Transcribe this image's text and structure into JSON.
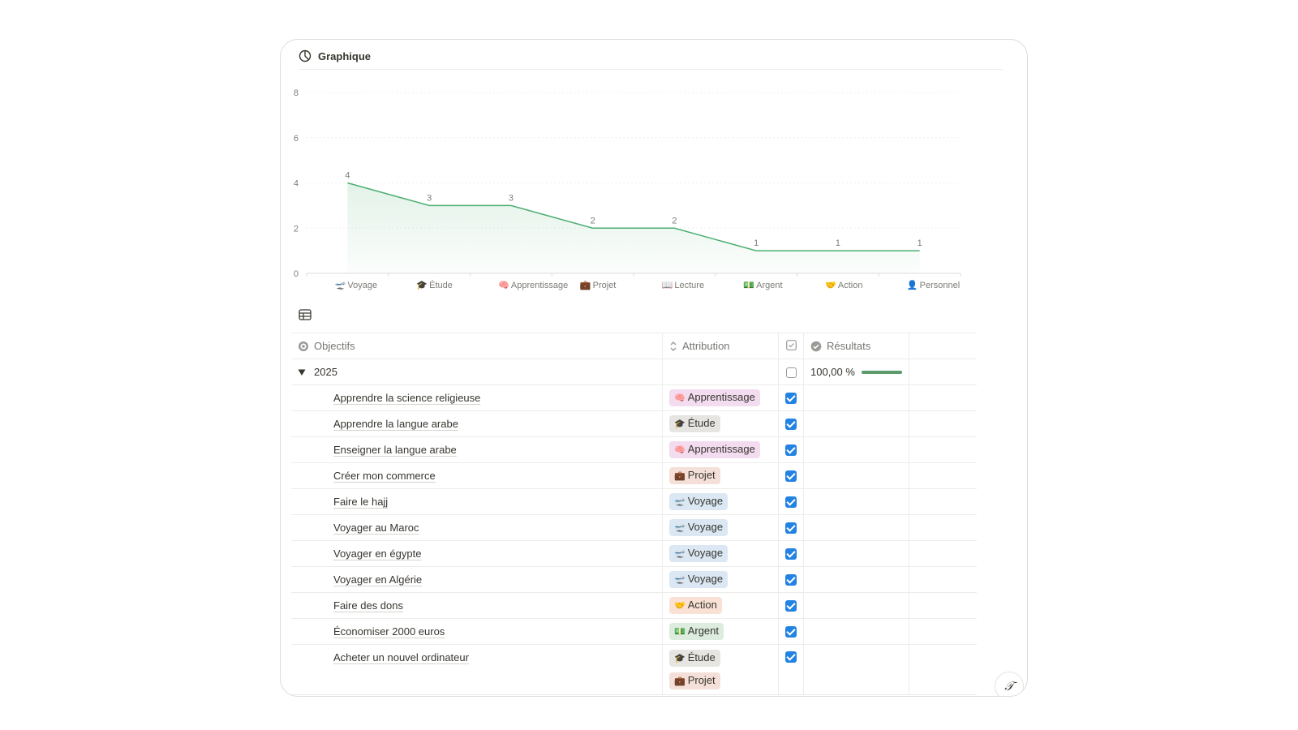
{
  "chart_header": {
    "title": "Graphique"
  },
  "chart_data": {
    "type": "area",
    "categories": [
      "Voyage",
      "Étude",
      "Apprentissage",
      "Projet",
      "Lecture",
      "Argent",
      "Action",
      "Personnel"
    ],
    "category_icons": [
      "🛫",
      "🎓",
      "🧠",
      "💼",
      "📖",
      "💵",
      "🤝",
      "👤"
    ],
    "values": [
      4,
      3,
      3,
      2,
      2,
      1,
      1,
      1
    ],
    "y_ticks": [
      0,
      2,
      4,
      6,
      8
    ],
    "ylim": [
      0,
      8
    ],
    "data_labels": true,
    "grid": true,
    "color": "#4caf72"
  },
  "table": {
    "columns": [
      {
        "label": "Objectifs",
        "icon": "target-icon"
      },
      {
        "label": "Attribution",
        "icon": "select-icon"
      },
      {
        "label": "",
        "icon": "checkbox-icon"
      },
      {
        "label": "Résultats",
        "icon": "rollup-check-icon"
      }
    ],
    "group": {
      "label": "2025",
      "result": "100,00 %",
      "progress": 1.0,
      "checked": false
    },
    "rows": [
      {
        "title": "Apprendre la science religieuse",
        "tags": [
          "Apprentissage"
        ],
        "checked": true
      },
      {
        "title": "Apprendre la langue arabe",
        "tags": [
          "Étude"
        ],
        "checked": true
      },
      {
        "title": "Enseigner la langue arabe",
        "tags": [
          "Apprentissage"
        ],
        "checked": true
      },
      {
        "title": "Créer mon commerce",
        "tags": [
          "Projet"
        ],
        "checked": true
      },
      {
        "title": "Faire le hajj",
        "tags": [
          "Voyage"
        ],
        "checked": true
      },
      {
        "title": "Voyager au Maroc",
        "tags": [
          "Voyage"
        ],
        "checked": true
      },
      {
        "title": "Voyager en égypte",
        "tags": [
          "Voyage"
        ],
        "checked": true
      },
      {
        "title": "Voyager en Algérie",
        "tags": [
          "Voyage"
        ],
        "checked": true
      },
      {
        "title": "Faire des dons",
        "tags": [
          "Action"
        ],
        "checked": true
      },
      {
        "title": "Économiser 2000 euros",
        "tags": [
          "Argent"
        ],
        "checked": true
      },
      {
        "title": "Acheter un nouvel ordinateur",
        "tags": [
          "Étude",
          "Projet"
        ],
        "checked": true
      }
    ]
  },
  "tag_styles": {
    "Apprentissage": {
      "bg": "#f3dcef",
      "icon": "🧠"
    },
    "Étude": {
      "bg": "#e6e5e2",
      "icon": "🎓"
    },
    "Projet": {
      "bg": "#f4e0d8",
      "icon": "💼"
    },
    "Voyage": {
      "bg": "#dbe8f3",
      "icon": "🛫"
    },
    "Action": {
      "bg": "#f9e2d5",
      "icon": "🤝"
    },
    "Argent": {
      "bg": "#dcecde",
      "icon": "💵"
    }
  },
  "corner_button": {
    "label": "𝒯"
  }
}
